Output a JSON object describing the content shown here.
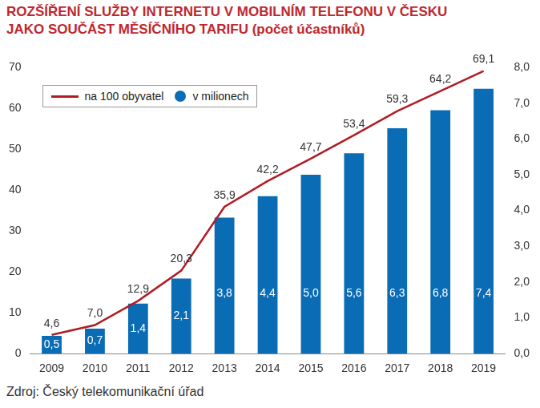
{
  "chart_data": {
    "type": "bar",
    "title": "ROZŠÍŘENÍ SLUŽBY INTERNETU V MOBILNÍM TELEFONU V ČESKU JAKO SOUČÁST MĚSÍČNÍHO TARIFU (počet účastníků)",
    "source": "Zdroj: Český telekomunikační úřad",
    "categories": [
      "2009",
      "2010",
      "2011",
      "2012",
      "2013",
      "2014",
      "2015",
      "2016",
      "2017",
      "2018",
      "2019"
    ],
    "series": [
      {
        "name": "na 100 obyvatel",
        "type": "line",
        "color": "#b01c22",
        "marker": "none",
        "axis": "y",
        "values": [
          4.6,
          7.0,
          12.9,
          20.3,
          35.9,
          42.2,
          47.7,
          53.4,
          59.3,
          64.2,
          69.1
        ],
        "value_labels": [
          "4,6",
          "7,0",
          "12,9",
          "20,3",
          "35,9",
          "42,2",
          "47,7",
          "53,4",
          "59,3",
          "64,2",
          "69,1"
        ]
      },
      {
        "name": "v milionech",
        "type": "bar",
        "color": "#0a6cb5",
        "axis": "y2",
        "values": [
          0.5,
          0.7,
          1.4,
          2.1,
          3.8,
          4.4,
          5.0,
          5.6,
          6.3,
          6.8,
          7.4
        ],
        "value_labels": [
          "0,5",
          "0,7",
          "1,4",
          "2,1",
          "3,8",
          "4,4",
          "5,0",
          "5,6",
          "6,3",
          "6,8",
          "7,4"
        ]
      }
    ],
    "ylim": [
      0,
      70
    ],
    "yticks": [
      0,
      10,
      20,
      30,
      40,
      50,
      60,
      70
    ],
    "y2lim": [
      0,
      8
    ],
    "y2ticks": [
      {
        "value": 0,
        "label": "0,0"
      },
      {
        "value": 1,
        "label": "1,0"
      },
      {
        "value": 2,
        "label": "2,0"
      },
      {
        "value": 3,
        "label": "3,0"
      },
      {
        "value": 4,
        "label": "4,0"
      },
      {
        "value": 5,
        "label": "5,0"
      },
      {
        "value": 6,
        "label": "6,0"
      },
      {
        "value": 7,
        "label": "7,0"
      },
      {
        "value": 8,
        "label": "8,0"
      }
    ],
    "grid": false,
    "legend": "top-left",
    "data_labels": true
  }
}
